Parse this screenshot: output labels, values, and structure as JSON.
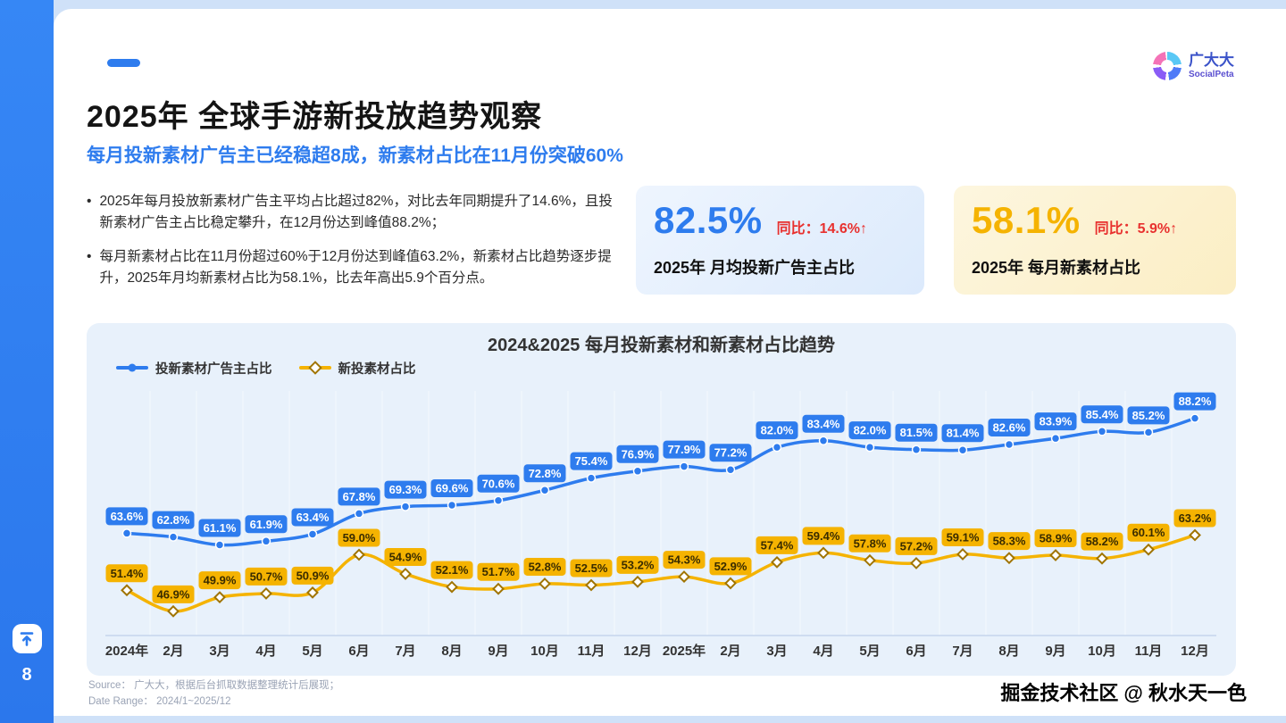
{
  "page": {
    "page_number": "8",
    "title": "2025年 全球手游新投放趋势观察",
    "subtitle": "每月投新素材广告主已经稳超8成，新素材占比在11月份突破60%",
    "bullets": [
      "2025年每月投放新素材广告主平均占比超过82%，对比去年同期提升了14.6%，且投新素材广告主占比稳定攀升，在12月份达到峰值88.2%；",
      "每月新素材占比在11月份超过60%于12月份达到峰值63.2%，新素材占比趋势逐步提升，2025年月均新素材占比为58.1%，比去年高出5.9个百分点。"
    ]
  },
  "logo": {
    "name": "广大大",
    "sub": "SocialPeta"
  },
  "stat_cards": [
    {
      "value": "82.5%",
      "yoy_label": "同比：14.6%↑",
      "caption": "2025年 月均投新广告主占比",
      "accent": "#2E7CEE"
    },
    {
      "value": "58.1%",
      "yoy_label": "同比：5.9%↑",
      "caption": "2025年 每月新素材占比",
      "accent": "#F5B301"
    }
  ],
  "footer": {
    "source": "Source： 广大大，根据后台抓取数据整理统计后展现；",
    "date_range": "Date Range： 2024/1~2025/12",
    "watermark": "掘金技术社区 @ 秋水天一色"
  },
  "chart_data": {
    "type": "line",
    "title": "2024&2025 每月投新素材和新素材占比趋势",
    "categories": [
      "2024年",
      "2月",
      "3月",
      "4月",
      "5月",
      "6月",
      "7月",
      "8月",
      "9月",
      "10月",
      "11月",
      "12月",
      "2025年",
      "2月",
      "3月",
      "4月",
      "5月",
      "6月",
      "7月",
      "8月",
      "9月",
      "10月",
      "11月",
      "12月"
    ],
    "series": [
      {
        "name": "投新素材广告主占比",
        "marker": "circle",
        "color": "#2E7CEE",
        "label_text_color": "#ffffff",
        "values": [
          63.6,
          62.8,
          61.1,
          61.9,
          63.4,
          67.8,
          69.3,
          69.6,
          70.6,
          72.8,
          75.4,
          76.9,
          77.9,
          77.2,
          82.0,
          83.4,
          82.0,
          81.5,
          81.4,
          82.6,
          83.9,
          85.4,
          85.2,
          88.2
        ]
      },
      {
        "name": "新投素材占比",
        "marker": "diamond",
        "color": "#F5B301",
        "label_text_color": "#3a2c00",
        "values": [
          51.4,
          46.9,
          49.9,
          50.7,
          50.9,
          59.0,
          54.9,
          52.1,
          51.7,
          52.8,
          52.5,
          53.2,
          54.3,
          52.9,
          57.4,
          59.4,
          57.8,
          57.2,
          59.1,
          58.3,
          58.9,
          58.2,
          60.1,
          63.2
        ]
      }
    ],
    "ylim": [
      44,
      91
    ],
    "grid": "faint vertical month separators",
    "legend_position": "top-left"
  }
}
